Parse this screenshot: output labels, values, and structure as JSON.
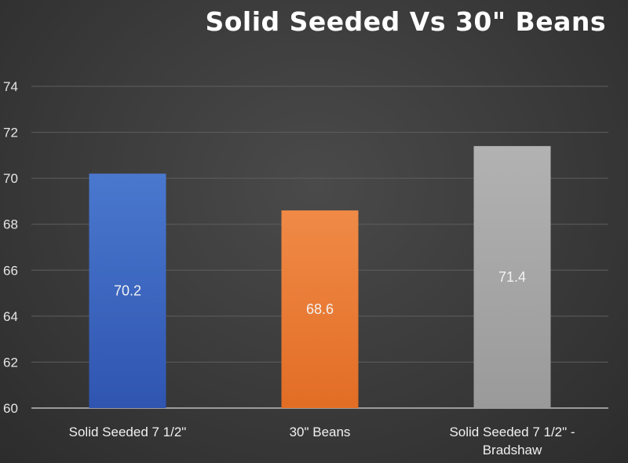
{
  "chart_data": {
    "type": "bar",
    "title": "Solid Seeded Vs 30\" Beans",
    "categories": [
      [
        "Solid Seeded 7 1/2\""
      ],
      [
        "30\" Beans"
      ],
      [
        "Solid Seeded 7 1/2\" -",
        "Bradshaw"
      ]
    ],
    "values": [
      70.2,
      68.6,
      71.4
    ],
    "data_labels": [
      "70.2",
      "68.6",
      "71.4"
    ],
    "colors": [
      "#4472c4",
      "#ed7d31",
      "#a5a5a5"
    ],
    "ylim": [
      60,
      74
    ],
    "yticks": [
      60,
      62,
      64,
      66,
      68,
      70,
      72,
      74
    ],
    "xlabel": "",
    "ylabel": "",
    "grid": true,
    "legend": "none"
  }
}
